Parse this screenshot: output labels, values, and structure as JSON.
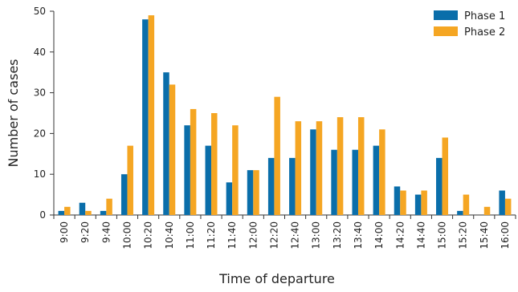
{
  "chart_data": {
    "type": "bar",
    "xlabel": "Time of departure",
    "ylabel": "Number of cases",
    "ylim": [
      0,
      50
    ],
    "yticks": [
      0,
      10,
      20,
      30,
      40,
      50
    ],
    "categories": [
      "9:00",
      "9:20",
      "9:40",
      "10:00",
      "10:20",
      "10:40",
      "11:00",
      "11:20",
      "11:40",
      "12:00",
      "12:20",
      "12:40",
      "13:00",
      "13:20",
      "13:40",
      "14:00",
      "14:20",
      "14:40",
      "15:00",
      "15:20",
      "15:40",
      "16:00"
    ],
    "series": [
      {
        "name": "Phase 1",
        "color": "#0a6eaa",
        "values": [
          1,
          3,
          1,
          10,
          48,
          35,
          22,
          17,
          8,
          11,
          14,
          14,
          21,
          16,
          16,
          17,
          7,
          5,
          14,
          1,
          0,
          6
        ]
      },
      {
        "name": "Phase 2",
        "color": "#f5a623",
        "values": [
          2,
          1,
          4,
          17,
          49,
          32,
          26,
          25,
          22,
          11,
          29,
          23,
          23,
          24,
          24,
          21,
          6,
          6,
          19,
          5,
          2,
          4
        ]
      }
    ],
    "legend_position": "top-right",
    "grid": false
  }
}
